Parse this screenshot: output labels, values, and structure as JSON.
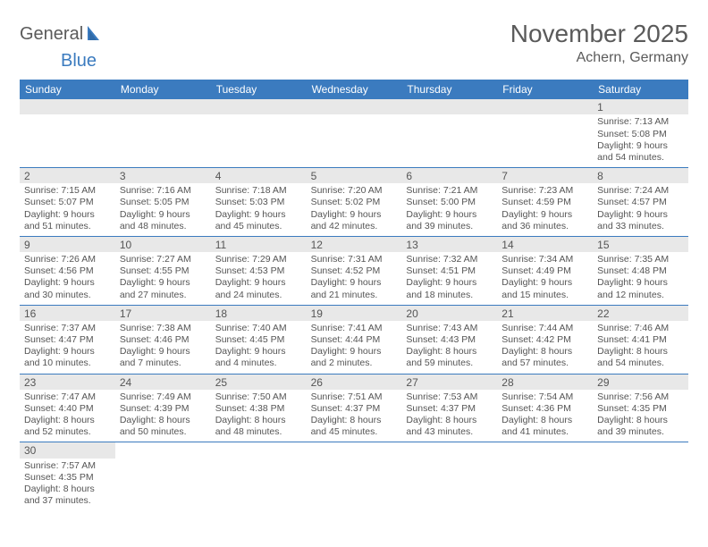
{
  "logo": {
    "text1": "General",
    "text2": "Blue",
    "sail_color": "#3b7bbf",
    "text_color": "#5a5a5a"
  },
  "title": "November 2025",
  "location": "Achern, Germany",
  "colors": {
    "header_bg": "#3b7bbf",
    "header_fg": "#ffffff",
    "daynum_bg": "#e8e8e8",
    "rule": "#3b7bbf"
  },
  "day_names": [
    "Sunday",
    "Monday",
    "Tuesday",
    "Wednesday",
    "Thursday",
    "Friday",
    "Saturday"
  ],
  "weeks": [
    [
      null,
      null,
      null,
      null,
      null,
      null,
      {
        "n": "1",
        "sr": "Sunrise: 7:13 AM",
        "ss": "Sunset: 5:08 PM",
        "dl1": "Daylight: 9 hours",
        "dl2": "and 54 minutes."
      }
    ],
    [
      {
        "n": "2",
        "sr": "Sunrise: 7:15 AM",
        "ss": "Sunset: 5:07 PM",
        "dl1": "Daylight: 9 hours",
        "dl2": "and 51 minutes."
      },
      {
        "n": "3",
        "sr": "Sunrise: 7:16 AM",
        "ss": "Sunset: 5:05 PM",
        "dl1": "Daylight: 9 hours",
        "dl2": "and 48 minutes."
      },
      {
        "n": "4",
        "sr": "Sunrise: 7:18 AM",
        "ss": "Sunset: 5:03 PM",
        "dl1": "Daylight: 9 hours",
        "dl2": "and 45 minutes."
      },
      {
        "n": "5",
        "sr": "Sunrise: 7:20 AM",
        "ss": "Sunset: 5:02 PM",
        "dl1": "Daylight: 9 hours",
        "dl2": "and 42 minutes."
      },
      {
        "n": "6",
        "sr": "Sunrise: 7:21 AM",
        "ss": "Sunset: 5:00 PM",
        "dl1": "Daylight: 9 hours",
        "dl2": "and 39 minutes."
      },
      {
        "n": "7",
        "sr": "Sunrise: 7:23 AM",
        "ss": "Sunset: 4:59 PM",
        "dl1": "Daylight: 9 hours",
        "dl2": "and 36 minutes."
      },
      {
        "n": "8",
        "sr": "Sunrise: 7:24 AM",
        "ss": "Sunset: 4:57 PM",
        "dl1": "Daylight: 9 hours",
        "dl2": "and 33 minutes."
      }
    ],
    [
      {
        "n": "9",
        "sr": "Sunrise: 7:26 AM",
        "ss": "Sunset: 4:56 PM",
        "dl1": "Daylight: 9 hours",
        "dl2": "and 30 minutes."
      },
      {
        "n": "10",
        "sr": "Sunrise: 7:27 AM",
        "ss": "Sunset: 4:55 PM",
        "dl1": "Daylight: 9 hours",
        "dl2": "and 27 minutes."
      },
      {
        "n": "11",
        "sr": "Sunrise: 7:29 AM",
        "ss": "Sunset: 4:53 PM",
        "dl1": "Daylight: 9 hours",
        "dl2": "and 24 minutes."
      },
      {
        "n": "12",
        "sr": "Sunrise: 7:31 AM",
        "ss": "Sunset: 4:52 PM",
        "dl1": "Daylight: 9 hours",
        "dl2": "and 21 minutes."
      },
      {
        "n": "13",
        "sr": "Sunrise: 7:32 AM",
        "ss": "Sunset: 4:51 PM",
        "dl1": "Daylight: 9 hours",
        "dl2": "and 18 minutes."
      },
      {
        "n": "14",
        "sr": "Sunrise: 7:34 AM",
        "ss": "Sunset: 4:49 PM",
        "dl1": "Daylight: 9 hours",
        "dl2": "and 15 minutes."
      },
      {
        "n": "15",
        "sr": "Sunrise: 7:35 AM",
        "ss": "Sunset: 4:48 PM",
        "dl1": "Daylight: 9 hours",
        "dl2": "and 12 minutes."
      }
    ],
    [
      {
        "n": "16",
        "sr": "Sunrise: 7:37 AM",
        "ss": "Sunset: 4:47 PM",
        "dl1": "Daylight: 9 hours",
        "dl2": "and 10 minutes."
      },
      {
        "n": "17",
        "sr": "Sunrise: 7:38 AM",
        "ss": "Sunset: 4:46 PM",
        "dl1": "Daylight: 9 hours",
        "dl2": "and 7 minutes."
      },
      {
        "n": "18",
        "sr": "Sunrise: 7:40 AM",
        "ss": "Sunset: 4:45 PM",
        "dl1": "Daylight: 9 hours",
        "dl2": "and 4 minutes."
      },
      {
        "n": "19",
        "sr": "Sunrise: 7:41 AM",
        "ss": "Sunset: 4:44 PM",
        "dl1": "Daylight: 9 hours",
        "dl2": "and 2 minutes."
      },
      {
        "n": "20",
        "sr": "Sunrise: 7:43 AM",
        "ss": "Sunset: 4:43 PM",
        "dl1": "Daylight: 8 hours",
        "dl2": "and 59 minutes."
      },
      {
        "n": "21",
        "sr": "Sunrise: 7:44 AM",
        "ss": "Sunset: 4:42 PM",
        "dl1": "Daylight: 8 hours",
        "dl2": "and 57 minutes."
      },
      {
        "n": "22",
        "sr": "Sunrise: 7:46 AM",
        "ss": "Sunset: 4:41 PM",
        "dl1": "Daylight: 8 hours",
        "dl2": "and 54 minutes."
      }
    ],
    [
      {
        "n": "23",
        "sr": "Sunrise: 7:47 AM",
        "ss": "Sunset: 4:40 PM",
        "dl1": "Daylight: 8 hours",
        "dl2": "and 52 minutes."
      },
      {
        "n": "24",
        "sr": "Sunrise: 7:49 AM",
        "ss": "Sunset: 4:39 PM",
        "dl1": "Daylight: 8 hours",
        "dl2": "and 50 minutes."
      },
      {
        "n": "25",
        "sr": "Sunrise: 7:50 AM",
        "ss": "Sunset: 4:38 PM",
        "dl1": "Daylight: 8 hours",
        "dl2": "and 48 minutes."
      },
      {
        "n": "26",
        "sr": "Sunrise: 7:51 AM",
        "ss": "Sunset: 4:37 PM",
        "dl1": "Daylight: 8 hours",
        "dl2": "and 45 minutes."
      },
      {
        "n": "27",
        "sr": "Sunrise: 7:53 AM",
        "ss": "Sunset: 4:37 PM",
        "dl1": "Daylight: 8 hours",
        "dl2": "and 43 minutes."
      },
      {
        "n": "28",
        "sr": "Sunrise: 7:54 AM",
        "ss": "Sunset: 4:36 PM",
        "dl1": "Daylight: 8 hours",
        "dl2": "and 41 minutes."
      },
      {
        "n": "29",
        "sr": "Sunrise: 7:56 AM",
        "ss": "Sunset: 4:35 PM",
        "dl1": "Daylight: 8 hours",
        "dl2": "and 39 minutes."
      }
    ],
    [
      {
        "n": "30",
        "sr": "Sunrise: 7:57 AM",
        "ss": "Sunset: 4:35 PM",
        "dl1": "Daylight: 8 hours",
        "dl2": "and 37 minutes."
      },
      null,
      null,
      null,
      null,
      null,
      null
    ]
  ]
}
